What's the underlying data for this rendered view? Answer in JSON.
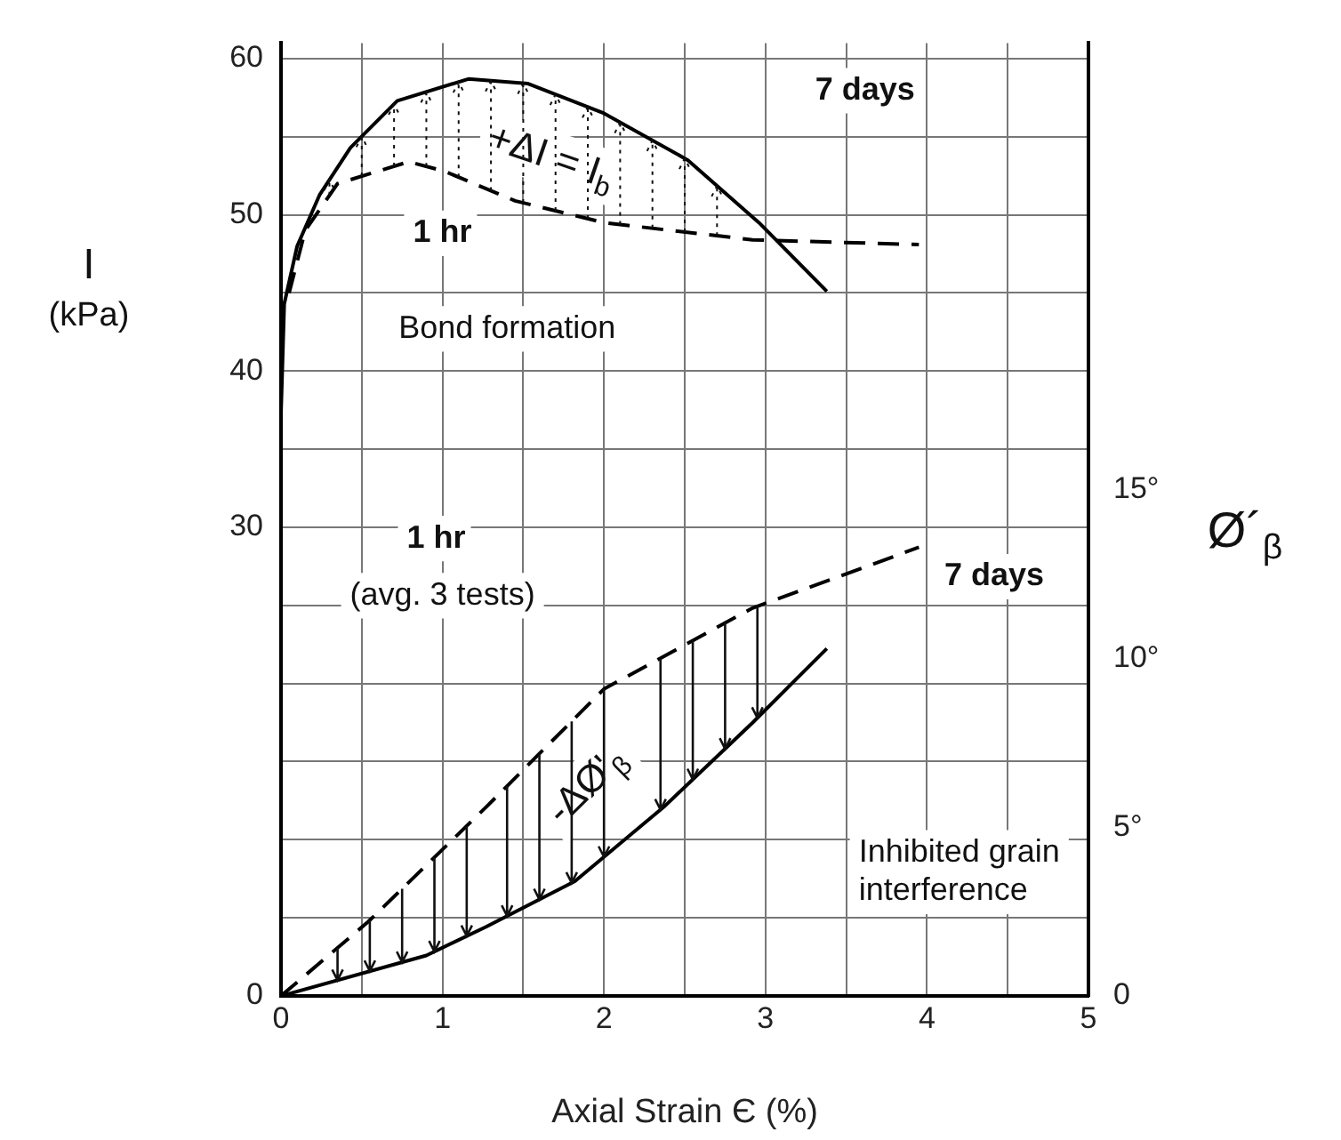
{
  "chart_data": {
    "type": "line",
    "xlabel": "Axial Strain Є (%)",
    "ylabel": "I\n(kPa)",
    "y2label": "Ø´$_{β}$",
    "xlim": [
      0,
      5
    ],
    "xticks": [
      0,
      {
        "value": 0.5,
        "label": null
      },
      1,
      {
        "value": 1.5,
        "label": null
      },
      2,
      {
        "value": 2.5,
        "label": null
      },
      3,
      {
        "value": 3.5,
        "label": null
      },
      4,
      {
        "value": 4.5,
        "label": null
      },
      5
    ],
    "ylim": [
      0,
      61
    ],
    "yticks": [
      0,
      {
        "value": 5,
        "label": null
      },
      {
        "value": 10,
        "label": null
      },
      {
        "value": 15,
        "label": null
      },
      {
        "value": 20,
        "label": null
      },
      {
        "value": 25,
        "label": null
      },
      30,
      {
        "value": 35,
        "label": null
      },
      40,
      {
        "value": 45,
        "label": null
      },
      50,
      {
        "value": 55,
        "label": null
      },
      60
    ],
    "y2lim": [
      0,
      28.25
    ],
    "y2ticks": [
      0,
      {
        "value": 5,
        "label": "5°"
      },
      {
        "value": 10,
        "label": "10°"
      },
      {
        "value": 15,
        "label": "15°"
      }
    ],
    "grid": true,
    "legend": false,
    "marker": "none",
    "series": [
      {
        "color": "#000000",
        "line_style": "solid",
        "x": [
          0,
          0.02,
          0.1,
          0.24,
          0.43,
          0.72,
          1.16,
          1.53,
          2.0,
          2.52,
          2.96,
          3.38
        ],
        "values": [
          37.3,
          44.3,
          48,
          51.3,
          54.3,
          57.3,
          58.7,
          58.4,
          56.5,
          53.5,
          49.5,
          45.1
        ]
      },
      {
        "color": "#000000",
        "line_style": "dashed",
        "x": [
          0.05,
          0.15,
          0.35,
          0.79,
          1.01,
          1.45,
          2.0,
          2.92,
          3.95
        ],
        "values": [
          45,
          49,
          52,
          53.4,
          52.8,
          50.9,
          49.5,
          48.4,
          48.1
        ]
      },
      {
        "color": "#000000",
        "line_style": "solid",
        "axis": "y2",
        "x": [
          0,
          0.9,
          1.27,
          1.82,
          2.37,
          2.92,
          3.38
        ],
        "values": [
          0,
          1.2,
          2.05,
          3.4,
          5.6,
          8.1,
          10.3
        ]
      },
      {
        "color": "#000000",
        "line_style": "dashed",
        "axis": "y2",
        "x": [
          0,
          0.54,
          1.27,
          2.0,
          2.92,
          3.95
        ],
        "values": [
          0,
          2.2,
          5.6,
          9.1,
          11.5,
          13.3
        ]
      }
    ],
    "annotations": [
      "7 days",
      {
        "text": "+ΔI = I$_{b}$",
        "x": 1.53,
        "y": 58.4
      },
      {
        "text": "1 hr",
        "x": 1.01,
        "y": 52.8
      },
      "Bond formation",
      "1 hr",
      "(avg. 3 tests)",
      "7 days",
      {
        "text": "-ΔØ'$_{β}$",
        "x": 1.82,
        "y": 7.3
      },
      "Inhibited grain\ninterference"
    ]
  }
}
